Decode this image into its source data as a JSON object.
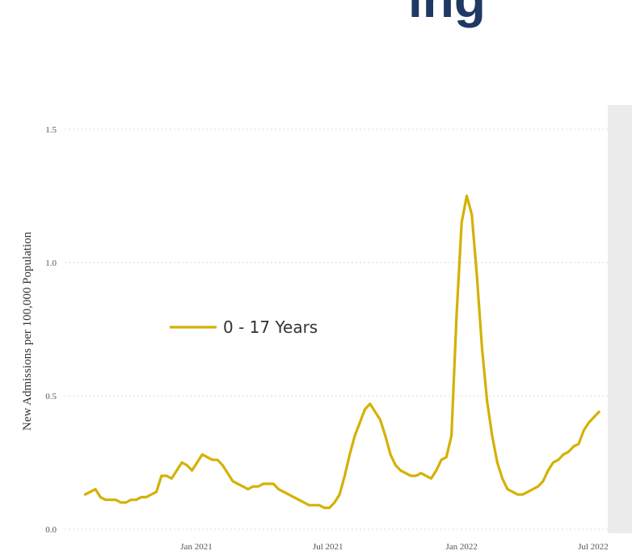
{
  "title_fragment": "ing",
  "chart_data": {
    "type": "line",
    "ylabel": "New Admissions per 100,000 Population",
    "ylim": [
      0,
      1.5
    ],
    "yticks": [
      "0.0",
      "0.5",
      "1.0",
      "1.5"
    ],
    "xticks": [
      {
        "date": "2021-01-01",
        "label": "Jan 2021"
      },
      {
        "date": "2021-07-01",
        "label": "Jul 2021"
      },
      {
        "date": "2022-01-01",
        "label": "Jan 2022"
      },
      {
        "date": "2022-07-01",
        "label": "Jul 2022"
      }
    ],
    "grid": true,
    "legend_position": "center-left",
    "color": "#d4b106",
    "series": [
      {
        "name": "0 - 17 Years",
        "points": [
          [
            "2020-08-01",
            0.13
          ],
          [
            "2020-08-08",
            0.14
          ],
          [
            "2020-08-15",
            0.15
          ],
          [
            "2020-08-22",
            0.12
          ],
          [
            "2020-08-29",
            0.11
          ],
          [
            "2020-09-05",
            0.11
          ],
          [
            "2020-09-12",
            0.11
          ],
          [
            "2020-09-19",
            0.1
          ],
          [
            "2020-09-26",
            0.1
          ],
          [
            "2020-10-03",
            0.11
          ],
          [
            "2020-10-10",
            0.11
          ],
          [
            "2020-10-17",
            0.12
          ],
          [
            "2020-10-24",
            0.12
          ],
          [
            "2020-10-31",
            0.13
          ],
          [
            "2020-11-07",
            0.14
          ],
          [
            "2020-11-14",
            0.2
          ],
          [
            "2020-11-21",
            0.2
          ],
          [
            "2020-11-28",
            0.19
          ],
          [
            "2020-12-05",
            0.22
          ],
          [
            "2020-12-12",
            0.25
          ],
          [
            "2020-12-19",
            0.24
          ],
          [
            "2020-12-26",
            0.22
          ],
          [
            "2021-01-02",
            0.25
          ],
          [
            "2021-01-09",
            0.28
          ],
          [
            "2021-01-16",
            0.27
          ],
          [
            "2021-01-23",
            0.26
          ],
          [
            "2021-01-30",
            0.26
          ],
          [
            "2021-02-06",
            0.24
          ],
          [
            "2021-02-13",
            0.21
          ],
          [
            "2021-02-20",
            0.18
          ],
          [
            "2021-02-27",
            0.17
          ],
          [
            "2021-03-06",
            0.16
          ],
          [
            "2021-03-13",
            0.15
          ],
          [
            "2021-03-20",
            0.16
          ],
          [
            "2021-03-27",
            0.16
          ],
          [
            "2021-04-03",
            0.17
          ],
          [
            "2021-04-10",
            0.17
          ],
          [
            "2021-04-17",
            0.17
          ],
          [
            "2021-04-24",
            0.15
          ],
          [
            "2021-05-01",
            0.14
          ],
          [
            "2021-05-08",
            0.13
          ],
          [
            "2021-05-15",
            0.12
          ],
          [
            "2021-05-22",
            0.11
          ],
          [
            "2021-05-29",
            0.1
          ],
          [
            "2021-06-05",
            0.09
          ],
          [
            "2021-06-12",
            0.09
          ],
          [
            "2021-06-19",
            0.09
          ],
          [
            "2021-06-26",
            0.08
          ],
          [
            "2021-07-03",
            0.08
          ],
          [
            "2021-07-10",
            0.1
          ],
          [
            "2021-07-17",
            0.13
          ],
          [
            "2021-07-24",
            0.2
          ],
          [
            "2021-07-31",
            0.28
          ],
          [
            "2021-08-07",
            0.35
          ],
          [
            "2021-08-14",
            0.4
          ],
          [
            "2021-08-21",
            0.45
          ],
          [
            "2021-08-28",
            0.47
          ],
          [
            "2021-09-04",
            0.44
          ],
          [
            "2021-09-11",
            0.41
          ],
          [
            "2021-09-18",
            0.35
          ],
          [
            "2021-09-25",
            0.28
          ],
          [
            "2021-10-02",
            0.24
          ],
          [
            "2021-10-09",
            0.22
          ],
          [
            "2021-10-16",
            0.21
          ],
          [
            "2021-10-23",
            0.2
          ],
          [
            "2021-10-30",
            0.2
          ],
          [
            "2021-11-06",
            0.21
          ],
          [
            "2021-11-13",
            0.2
          ],
          [
            "2021-11-20",
            0.19
          ],
          [
            "2021-11-27",
            0.22
          ],
          [
            "2021-12-04",
            0.26
          ],
          [
            "2021-12-11",
            0.27
          ],
          [
            "2021-12-18",
            0.35
          ],
          [
            "2021-12-25",
            0.8
          ],
          [
            "2022-01-01",
            1.15
          ],
          [
            "2022-01-08",
            1.25
          ],
          [
            "2022-01-15",
            1.18
          ],
          [
            "2022-01-22",
            0.95
          ],
          [
            "2022-01-29",
            0.68
          ],
          [
            "2022-02-05",
            0.48
          ],
          [
            "2022-02-12",
            0.35
          ],
          [
            "2022-02-19",
            0.25
          ],
          [
            "2022-02-26",
            0.19
          ],
          [
            "2022-03-05",
            0.15
          ],
          [
            "2022-03-12",
            0.14
          ],
          [
            "2022-03-19",
            0.13
          ],
          [
            "2022-03-26",
            0.13
          ],
          [
            "2022-04-02",
            0.14
          ],
          [
            "2022-04-09",
            0.15
          ],
          [
            "2022-04-16",
            0.16
          ],
          [
            "2022-04-23",
            0.18
          ],
          [
            "2022-04-30",
            0.22
          ],
          [
            "2022-05-07",
            0.25
          ],
          [
            "2022-05-14",
            0.26
          ],
          [
            "2022-05-21",
            0.28
          ],
          [
            "2022-05-28",
            0.29
          ],
          [
            "2022-06-04",
            0.31
          ],
          [
            "2022-06-11",
            0.32
          ],
          [
            "2022-06-18",
            0.37
          ],
          [
            "2022-06-25",
            0.4
          ],
          [
            "2022-07-02",
            0.42
          ],
          [
            "2022-07-09",
            0.44
          ]
        ]
      }
    ]
  }
}
